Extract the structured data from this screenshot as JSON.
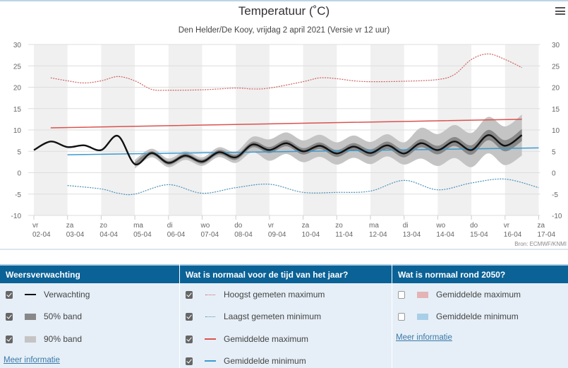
{
  "header": {
    "title": "Temperatuur (˚C)",
    "subtitle": "Den Helder/De Kooy, vrijdag 2 april 2021 (Versie vr 12 uur)",
    "menu_icon": "hamburger-icon"
  },
  "chart_data": {
    "type": "line",
    "title": "Temperatuur (˚C)",
    "subtitle": "Den Helder/De Kooy, vrijdag 2 april 2021 (Versie vr 12 uur)",
    "ylim": [
      -10,
      30
    ],
    "yticks": [
      30,
      25,
      20,
      15,
      10,
      5,
      0,
      -5,
      -10
    ],
    "x_categories": [
      [
        "vr",
        "02-04"
      ],
      [
        "za",
        "03-04"
      ],
      [
        "zo",
        "04-04"
      ],
      [
        "ma",
        "05-04"
      ],
      [
        "di",
        "06-04"
      ],
      [
        "wo",
        "07-04"
      ],
      [
        "do",
        "08-04"
      ],
      [
        "vr",
        "09-04"
      ],
      [
        "za",
        "10-04"
      ],
      [
        "zo",
        "11-04"
      ],
      [
        "ma",
        "12-04"
      ],
      [
        "di",
        "13-04"
      ],
      [
        "wo",
        "14-04"
      ],
      [
        "do",
        "15-04"
      ],
      [
        "vr",
        "16-04"
      ],
      [
        "za",
        "17-04"
      ]
    ],
    "grid": true,
    "source": "Bron: ECMWF/KNMI",
    "colors": {
      "forecast": "#111111",
      "band50": "#888888",
      "band90": "#c4c4c4",
      "record_max": "#d06060",
      "record_min": "#4a90b8",
      "avg_max": "#d9534f",
      "avg_min": "#3d9ad1",
      "shade": "#f0f0f0"
    },
    "forecast": {
      "x": [
        0,
        0.5,
        1,
        1.5,
        2,
        2.5,
        3,
        3.5,
        4,
        4.5,
        5,
        5.5,
        6,
        6.5,
        7,
        7.5,
        8,
        8.5,
        9,
        9.5,
        10,
        10.5,
        11,
        11.5,
        12,
        12.5,
        13,
        13.5,
        14,
        14.5
      ],
      "y": [
        5.3,
        7.3,
        6.0,
        6.4,
        5.3,
        8.6,
        2.0,
        4.6,
        2.3,
        4.0,
        2.6,
        4.8,
        3.6,
        6.6,
        5.3,
        6.9,
        5.0,
        6.3,
        4.5,
        6.1,
        4.6,
        6.4,
        4.5,
        6.9,
        5.3,
        7.3,
        5.3,
        8.8,
        6.3,
        8.8
      ]
    },
    "band50_halfwidth": {
      "x": [
        3,
        5,
        7,
        9,
        11,
        13,
        14.5
      ],
      "y": [
        0.4,
        0.5,
        0.7,
        0.8,
        0.9,
        1.1,
        1.4
      ]
    },
    "band90_halfwidth": {
      "x": [
        3,
        5,
        6,
        6.5,
        7,
        9,
        11,
        11.5,
        13,
        14.5
      ],
      "y": [
        1.0,
        1.0,
        1.3,
        1.8,
        2.5,
        2.6,
        2.6,
        3.6,
        4.0,
        4.8
      ]
    },
    "series": [
      {
        "name": "Hoogst gemeten maximum",
        "x": [
          0.5,
          1,
          1.5,
          2,
          2.5,
          3,
          3.5,
          4,
          5,
          6,
          6.5,
          7,
          8,
          8.5,
          9,
          9.5,
          10,
          11,
          12,
          12.5,
          13,
          13.5,
          14,
          14.5
        ],
        "y": [
          22.2,
          21.5,
          21.0,
          21.5,
          22.5,
          21.5,
          19.5,
          19.3,
          19.4,
          19.8,
          19.6,
          19.8,
          21.3,
          22.2,
          22.0,
          21.5,
          21.3,
          21.4,
          21.8,
          23.0,
          26.5,
          27.8,
          26.5,
          24.6
        ],
        "style": "dotted"
      },
      {
        "name": "Laagst gemeten minimum",
        "x": [
          1,
          2,
          2.5,
          3,
          4,
          5,
          6,
          7,
          8,
          9,
          10,
          11,
          12,
          13,
          14,
          15
        ],
        "y": [
          -3.0,
          -3.8,
          -4.8,
          -5.0,
          -2.8,
          -4.8,
          -3.5,
          -2.7,
          -4.6,
          -4.6,
          -4.3,
          -1.8,
          -4.0,
          -2.4,
          -1.5,
          -3.5
        ],
        "style": "dotted"
      },
      {
        "name": "Gemiddelde maximum",
        "x": [
          0.5,
          14.5
        ],
        "y": [
          10.5,
          12.5
        ],
        "style": "solid"
      },
      {
        "name": "Gemiddelde minimum",
        "x": [
          1,
          15
        ],
        "y": [
          4.2,
          5.8
        ],
        "style": "solid"
      }
    ]
  },
  "legend": {
    "forecast": {
      "title": "Weersverwachting",
      "items": [
        {
          "label": "Verwachting",
          "checked": true
        },
        {
          "label": "50% band",
          "checked": true
        },
        {
          "label": "90% band",
          "checked": true
        }
      ],
      "link": "Meer informatie"
    },
    "normal": {
      "title": "Wat is normaal voor de tijd van het jaar?",
      "items": [
        {
          "label": "Hoogst gemeten maximum",
          "checked": true
        },
        {
          "label": "Laagst gemeten minimum",
          "checked": true
        },
        {
          "label": "Gemiddelde maximum",
          "checked": true
        },
        {
          "label": "Gemiddelde minimum",
          "checked": true
        }
      ]
    },
    "future": {
      "title": "Wat is normaal rond 2050?",
      "items": [
        {
          "label": "Gemiddelde maximum",
          "checked": false,
          "color": "#e3b3b6"
        },
        {
          "label": "Gemiddelde minimum",
          "checked": false,
          "color": "#a9cfe8"
        }
      ],
      "link": "Meer informatie"
    }
  }
}
